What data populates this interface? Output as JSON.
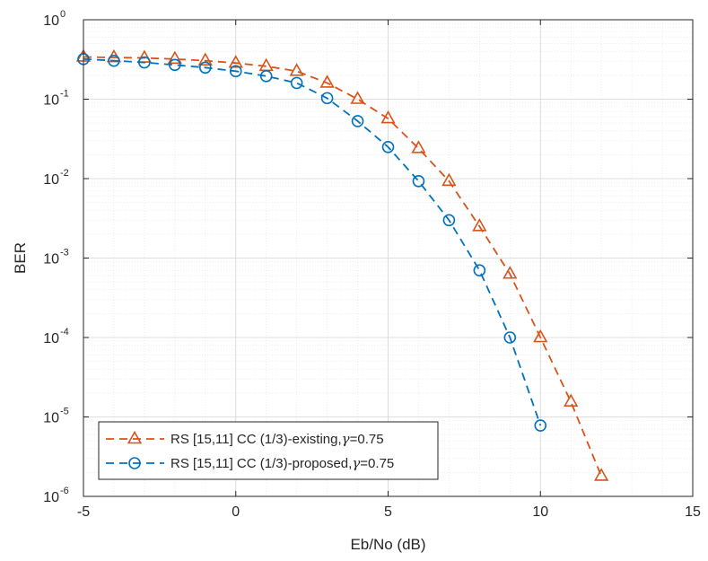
{
  "chart_data": {
    "type": "line",
    "xlabel": "Eb/No (dB)",
    "ylabel": "BER",
    "xlim": [
      -5,
      15
    ],
    "ylim": [
      1e-06,
      1
    ],
    "yscale": "log",
    "grid": true,
    "minor_grid": true,
    "legend_position": "bottom-left",
    "x_ticks": [
      -5,
      0,
      5,
      10,
      15
    ],
    "x_tick_labels": [
      "-5",
      "0",
      "5",
      "10",
      "15"
    ],
    "y_ticks": [
      1e-06,
      1e-05,
      0.0001,
      0.001,
      0.01,
      0.1,
      1
    ],
    "y_tick_labels": [
      {
        "base": "10",
        "exp": "-6"
      },
      {
        "base": "10",
        "exp": "-5"
      },
      {
        "base": "10",
        "exp": "-4"
      },
      {
        "base": "10",
        "exp": "-3"
      },
      {
        "base": "10",
        "exp": "-2"
      },
      {
        "base": "10",
        "exp": "-1"
      },
      {
        "base": "10",
        "exp": "0"
      }
    ],
    "series": [
      {
        "legend_prefix": "RS [15,11] CC (1/3)-existing,",
        "legend_symbol": "γ",
        "legend_suffix": "=0.75",
        "color": "#D95319",
        "marker": "triangle",
        "line_style": "dashed",
        "x": [
          -5,
          -4,
          -3,
          -2,
          -1,
          0,
          1,
          2,
          3,
          4,
          5,
          6,
          7,
          8,
          9,
          10,
          11,
          12
        ],
        "y": [
          0.34,
          0.335,
          0.33,
          0.32,
          0.305,
          0.285,
          0.26,
          0.225,
          0.16,
          0.1,
          0.057,
          0.024,
          0.0093,
          0.0025,
          0.00063,
          0.0001,
          1.55e-05,
          1.8e-06
        ]
      },
      {
        "legend_prefix": "RS [15,11] CC (1/3)-proposed,",
        "legend_symbol": "γ",
        "legend_suffix": "=0.75",
        "color": "#0072BD",
        "marker": "circle",
        "line_style": "dashed",
        "x": [
          -5,
          -4,
          -3,
          -2,
          -1,
          0,
          1,
          2,
          3,
          4,
          5,
          6,
          7,
          8,
          9,
          10
        ],
        "y": [
          0.32,
          0.305,
          0.29,
          0.27,
          0.25,
          0.225,
          0.195,
          0.16,
          0.103,
          0.053,
          0.025,
          0.0093,
          0.003,
          0.0007,
          0.0001,
          7.8e-06
        ]
      }
    ]
  }
}
